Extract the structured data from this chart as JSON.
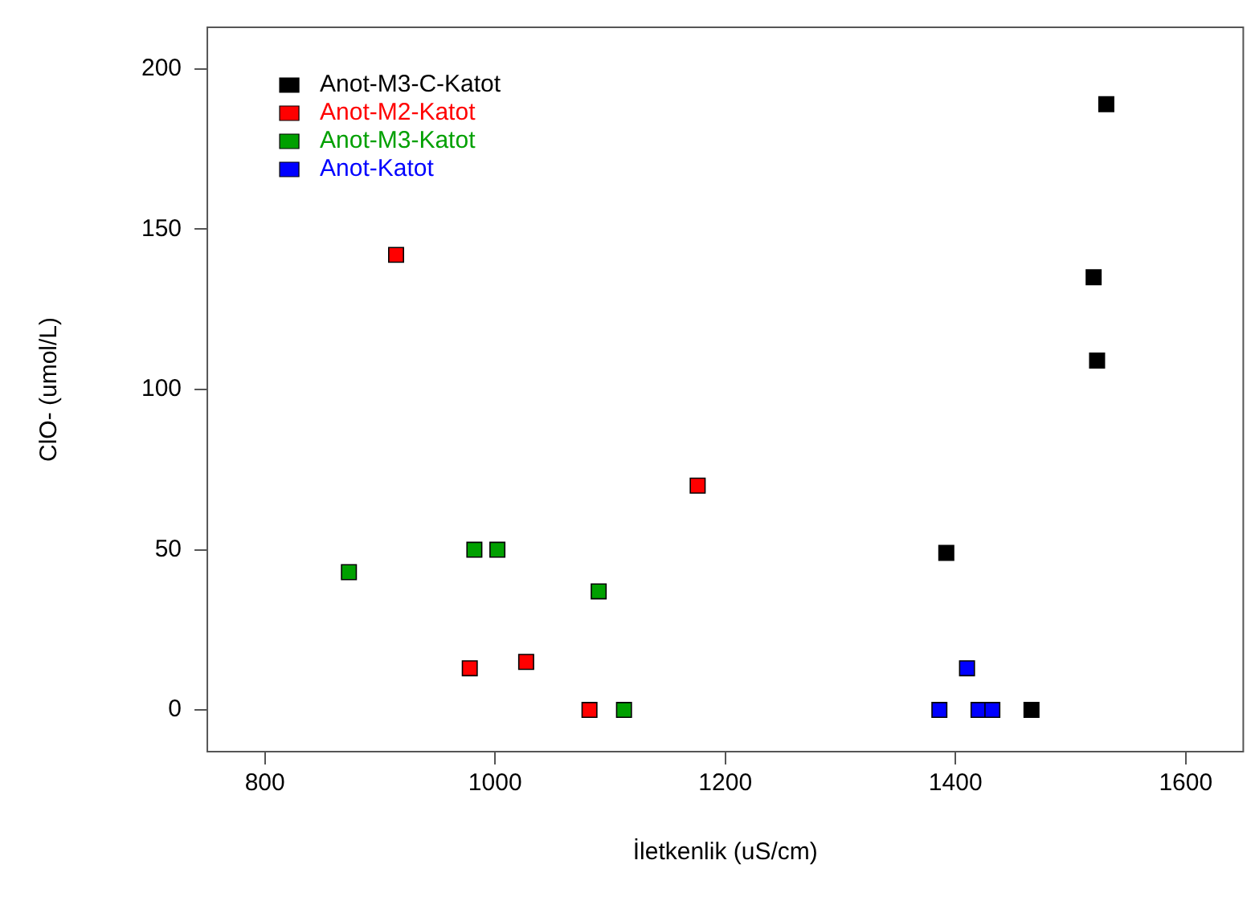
{
  "chart_data": {
    "type": "scatter",
    "xlabel": "İletkenlik (uS/cm)",
    "ylabel": "ClO- (umol/L)",
    "xlim": [
      750,
      1650
    ],
    "xticks": [
      800,
      1000,
      1200,
      1400,
      1600
    ],
    "ylim": [
      -13,
      213
    ],
    "yticks": [
      0,
      50,
      100,
      150,
      200
    ],
    "grid": false,
    "legend": "top left",
    "marker": "square",
    "series": [
      {
        "name": "Anot-M3-C-Katot",
        "color": "#000000",
        "x": [
          1531,
          1520,
          1523,
          1392,
          1466
        ],
        "values": [
          189,
          135,
          109,
          49,
          0
        ]
      },
      {
        "name": "Anot-M2-Katot",
        "color": "#ff0000",
        "x": [
          914,
          1176,
          978,
          1027,
          1082
        ],
        "values": [
          142,
          70,
          13,
          15,
          0
        ]
      },
      {
        "name": "Anot-M3-Katot",
        "color": "#00a000",
        "x": [
          873,
          982,
          1002,
          1090,
          1112
        ],
        "values": [
          43,
          50,
          50,
          37,
          0
        ]
      },
      {
        "name": "Anot-Katot",
        "color": "#0000ff",
        "x": [
          1386,
          1410,
          1420,
          1432
        ],
        "values": [
          0,
          13,
          0,
          0
        ]
      }
    ]
  }
}
